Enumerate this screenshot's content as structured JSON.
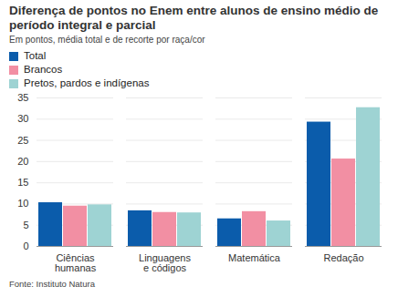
{
  "chart_data": {
    "type": "bar",
    "title": "Diferença de pontos no Enem entre alunos de ensino médio de período integral e parcial",
    "subtitle": "Em pontos, média total e de recorte por raça/cor",
    "source": "Fonte: Instituto Natura",
    "categories": [
      "Ciências humanas",
      "Linguagens e códigos",
      "Matemática",
      "Redação"
    ],
    "series": [
      {
        "name": "Total",
        "color": "#0b5cab",
        "values": [
          10.3,
          8.4,
          6.5,
          29.3
        ]
      },
      {
        "name": "Brancos",
        "color": "#f28fa3",
        "values": [
          9.5,
          8.0,
          8.2,
          20.6
        ]
      },
      {
        "name": "Pretos, pardos e indígenas",
        "color": "#9ed3d3",
        "values": [
          9.8,
          7.9,
          6.0,
          32.7
        ]
      }
    ],
    "ylim": [
      0,
      35
    ],
    "yticks": [
      0,
      5,
      10,
      15,
      20,
      25,
      30,
      35
    ],
    "grid": true,
    "legend": "top-left"
  }
}
